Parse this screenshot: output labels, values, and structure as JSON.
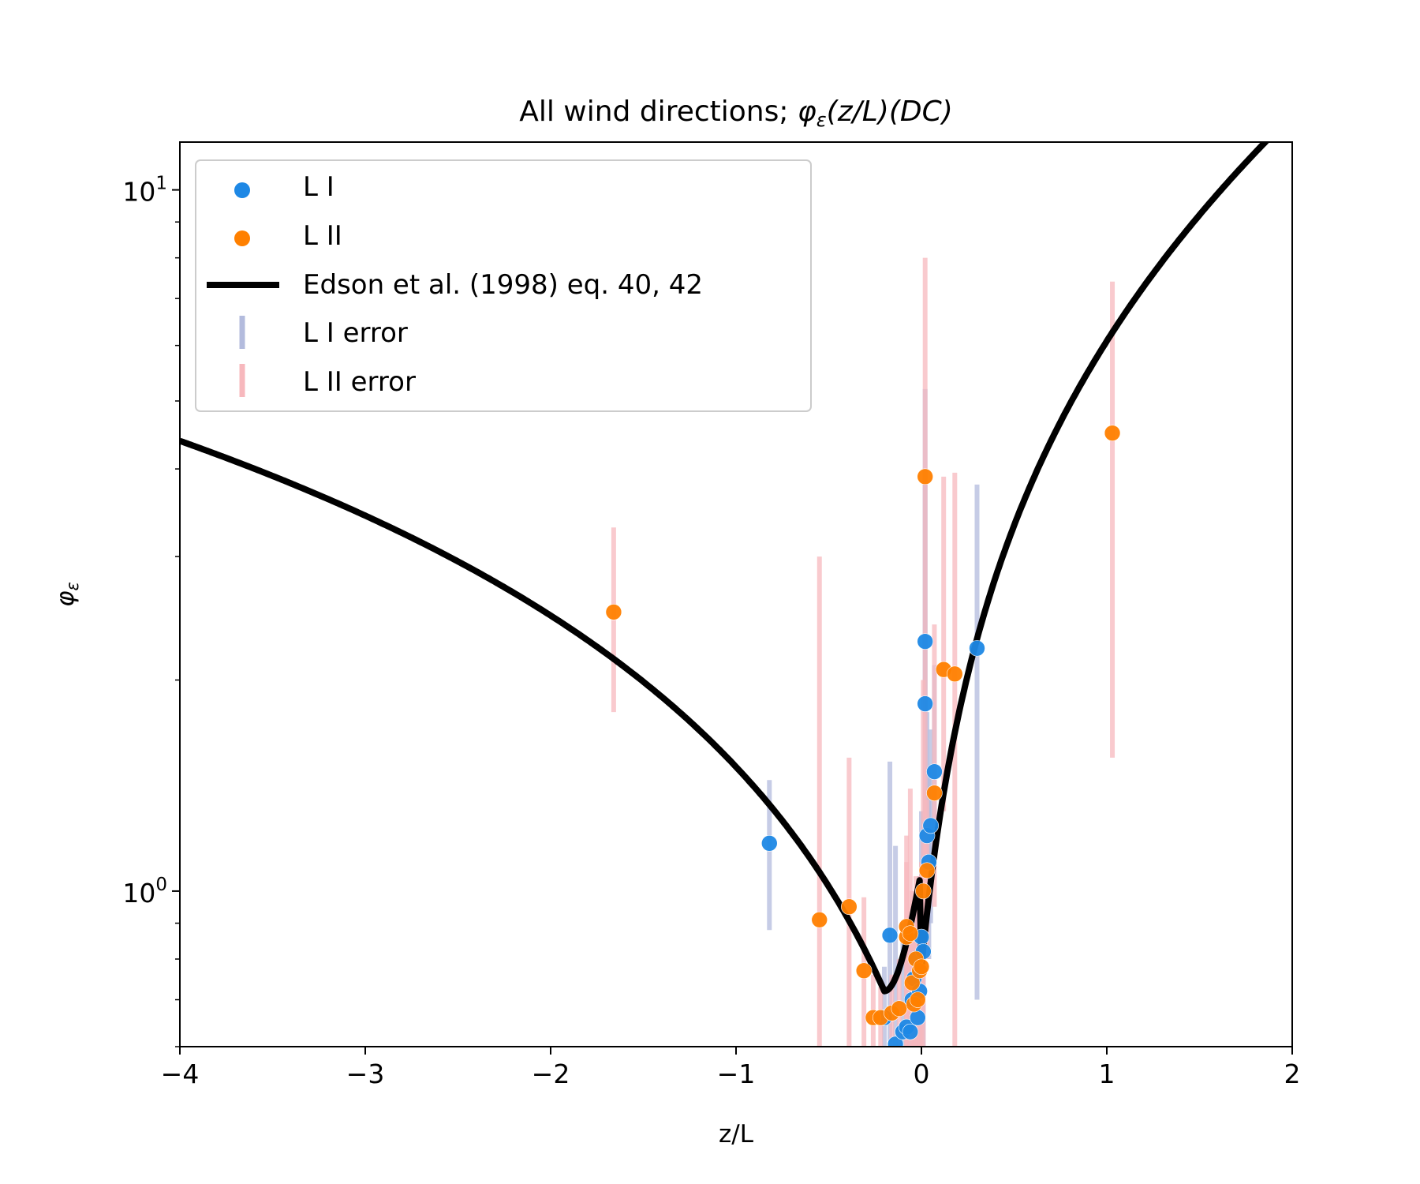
{
  "chart_data": {
    "type": "scatter",
    "title": "All wind directions; ",
    "title_math": {
      "symbol": "φ",
      "subscript": "ε",
      "rest": "(z/L)(DC)"
    },
    "xlabel": "z/L",
    "ylabel": {
      "symbol": "φ",
      "subscript": "ε"
    },
    "xlim": [
      -4,
      2
    ],
    "ylim": [
      0.6,
      11.7
    ],
    "yscale": "log",
    "grid": false,
    "legend_position": "upper-left",
    "xticks": [
      -4,
      -3,
      -2,
      -1,
      0,
      1,
      2
    ],
    "xtick_labels": [
      "−4",
      "−3",
      "−2",
      "−1",
      "0",
      "1",
      "2"
    ],
    "yticks_major": [
      {
        "base": "10",
        "exp": "0",
        "value": 1
      },
      {
        "base": "10",
        "exp": "1",
        "value": 10
      }
    ],
    "yticks_minor": [
      0.6,
      0.7,
      0.8,
      0.9,
      2,
      3,
      4,
      5,
      6,
      7,
      8,
      9
    ],
    "legend": [
      {
        "label": "L I",
        "marker": "dot",
        "color": "#1e88e5"
      },
      {
        "label": "L II",
        "marker": "dot",
        "color": "#ff8000"
      },
      {
        "label": "Edson et al. (1998) eq. 40, 42",
        "marker": "line",
        "color": "#000000"
      },
      {
        "label": "L I error",
        "marker": "vbar",
        "color": "#b3bbdd"
      },
      {
        "label": "L II error",
        "marker": "vbar",
        "color": "#f7b8bd"
      }
    ],
    "colors": {
      "L I": "#1e88e5",
      "L II": "#ff8000",
      "L I error": "#b3bbdd",
      "L II error": "#f7b8bd",
      "fit": "#000000"
    },
    "series": [
      {
        "name": "L I",
        "points": [
          {
            "x": -0.82,
            "y": 1.17,
            "ylo": 0.88,
            "yhi": 1.44
          },
          {
            "x": -0.17,
            "y": 0.865,
            "ylo": 0.61,
            "yhi": 1.53
          },
          {
            "x": -0.14,
            "y": 0.605,
            "ylo": 0.58,
            "yhi": 1.16
          },
          {
            "x": -0.2,
            "y": 0.66,
            "ylo": 0.58,
            "yhi": 0.78
          },
          {
            "x": -0.1,
            "y": 0.63,
            "ylo": 0.58,
            "yhi": 0.9
          },
          {
            "x": -0.08,
            "y": 0.64,
            "ylo": 0.58,
            "yhi": 0.82
          },
          {
            "x": -0.06,
            "y": 0.63,
            "ylo": 0.58,
            "yhi": 0.85
          },
          {
            "x": -0.05,
            "y": 0.7,
            "ylo": 0.58,
            "yhi": 0.9
          },
          {
            "x": -0.04,
            "y": 0.75,
            "ylo": 0.58,
            "yhi": 0.95
          },
          {
            "x": -0.03,
            "y": 0.8,
            "ylo": 0.58,
            "yhi": 1.0
          },
          {
            "x": -0.02,
            "y": 0.66,
            "ylo": 0.58,
            "yhi": 0.92
          },
          {
            "x": -0.01,
            "y": 0.72,
            "ylo": 0.58,
            "yhi": 1.05
          },
          {
            "x": 0.0,
            "y": 0.86,
            "ylo": 0.6,
            "yhi": 1.3
          },
          {
            "x": 0.01,
            "y": 0.82,
            "ylo": 0.6,
            "yhi": 1.3
          },
          {
            "x": 0.02,
            "y": 1.85,
            "ylo": 0.9,
            "yhi": 3.8
          },
          {
            "x": 0.02,
            "y": 2.27,
            "ylo": 1.2,
            "yhi": 5.2
          },
          {
            "x": 0.03,
            "y": 1.2,
            "ylo": 0.8,
            "yhi": 1.8
          },
          {
            "x": 0.04,
            "y": 1.1,
            "ylo": 0.8,
            "yhi": 1.5
          },
          {
            "x": 0.05,
            "y": 1.24,
            "ylo": 0.9,
            "yhi": 1.7
          },
          {
            "x": 0.07,
            "y": 1.48,
            "ylo": 1.1,
            "yhi": 2.1
          },
          {
            "x": 0.3,
            "y": 2.22,
            "ylo": 0.7,
            "yhi": 3.8
          }
        ]
      },
      {
        "name": "L II",
        "points": [
          {
            "x": -1.66,
            "y": 2.5,
            "ylo": 1.8,
            "yhi": 3.3
          },
          {
            "x": -0.55,
            "y": 0.91,
            "ylo": 0.55,
            "yhi": 3.0
          },
          {
            "x": -0.39,
            "y": 0.95,
            "ylo": 0.55,
            "yhi": 1.55
          },
          {
            "x": -0.31,
            "y": 0.77,
            "ylo": 0.58,
            "yhi": 0.98
          },
          {
            "x": -0.26,
            "y": 0.66,
            "ylo": 0.58,
            "yhi": 0.76
          },
          {
            "x": -0.22,
            "y": 0.66,
            "ylo": 0.6,
            "yhi": 0.73
          },
          {
            "x": -0.16,
            "y": 0.67,
            "ylo": 0.6,
            "yhi": 0.76
          },
          {
            "x": -0.12,
            "y": 0.68,
            "ylo": 0.6,
            "yhi": 0.8
          },
          {
            "x": -0.08,
            "y": 0.86,
            "ylo": 0.6,
            "yhi": 1.1
          },
          {
            "x": -0.08,
            "y": 0.89,
            "ylo": 0.6,
            "yhi": 1.2
          },
          {
            "x": -0.06,
            "y": 0.87,
            "ylo": 0.6,
            "yhi": 1.4
          },
          {
            "x": -0.05,
            "y": 0.74,
            "ylo": 0.6,
            "yhi": 1.0
          },
          {
            "x": -0.04,
            "y": 0.69,
            "ylo": 0.58,
            "yhi": 0.9
          },
          {
            "x": -0.03,
            "y": 0.8,
            "ylo": 0.58,
            "yhi": 1.05
          },
          {
            "x": -0.02,
            "y": 0.7,
            "ylo": 0.58,
            "yhi": 0.95
          },
          {
            "x": -0.01,
            "y": 0.77,
            "ylo": 0.58,
            "yhi": 1.05
          },
          {
            "x": 0.0,
            "y": 0.78,
            "ylo": 0.58,
            "yhi": 1.1
          },
          {
            "x": 0.01,
            "y": 1.0,
            "ylo": 0.6,
            "yhi": 2.0
          },
          {
            "x": 0.02,
            "y": 3.9,
            "ylo": 0.9,
            "yhi": 8.0
          },
          {
            "x": 0.03,
            "y": 1.07,
            "ylo": 0.8,
            "yhi": 1.35
          },
          {
            "x": 0.07,
            "y": 1.38,
            "ylo": 0.95,
            "yhi": 2.4
          },
          {
            "x": 0.12,
            "y": 2.07,
            "ylo": 1.3,
            "yhi": 3.9
          },
          {
            "x": 0.18,
            "y": 2.04,
            "ylo": 0.58,
            "yhi": 3.95
          },
          {
            "x": 1.03,
            "y": 4.5,
            "ylo": 1.55,
            "yhi": 7.4
          }
        ]
      }
    ],
    "fit_curve": {
      "name": "Edson et al. (1998) eq. 40, 42",
      "x_range": [
        -4,
        2
      ]
    }
  }
}
